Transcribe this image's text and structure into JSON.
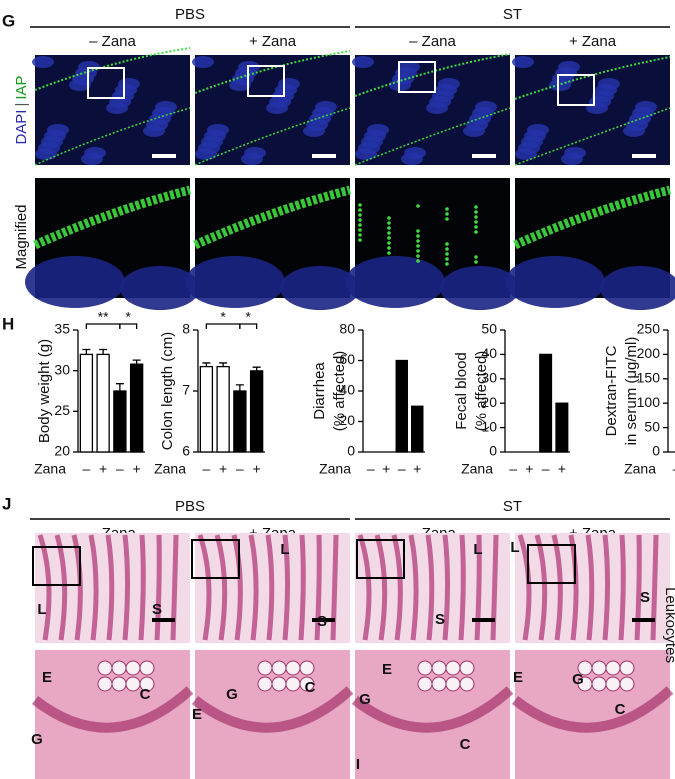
{
  "panel_g": {
    "label": "G",
    "groups": [
      "PBS",
      "ST"
    ],
    "conditions": [
      "– Zana",
      "+ Zana",
      "– Zana",
      "+ Zana"
    ],
    "row_labels": {
      "dapi": "DAPI",
      "iap": "IAP",
      "magnified": "Magnified"
    }
  },
  "panel_h": {
    "label": "H"
  },
  "chart_data": [
    {
      "type": "bar",
      "y_label": "Body weight (g)",
      "x_label": "Zana",
      "categories": [
        "–",
        "+",
        "–",
        "+"
      ],
      "values": [
        32,
        32,
        27.5,
        30.8
      ],
      "errors": [
        0.6,
        0.6,
        0.9,
        0.5
      ],
      "colors": [
        "#ffffff",
        "#ffffff",
        "#000000",
        "#000000"
      ],
      "ylim": [
        20,
        35
      ],
      "yticks": [
        20,
        25,
        30,
        35
      ],
      "brackets": [
        {
          "label": "**",
          "from": 0,
          "to": 2
        },
        {
          "label": "*",
          "from": 2,
          "to": 3
        }
      ]
    },
    {
      "type": "bar",
      "y_label": "Colon length (cm)",
      "x_label": "Zana",
      "categories": [
        "–",
        "+",
        "–",
        "+"
      ],
      "values": [
        7.4,
        7.4,
        7.0,
        7.33
      ],
      "errors": [
        0.06,
        0.06,
        0.1,
        0.06
      ],
      "colors": [
        "#ffffff",
        "#ffffff",
        "#000000",
        "#000000"
      ],
      "ylim": [
        6,
        8
      ],
      "yticks": [
        6,
        7,
        8
      ],
      "brackets": [
        {
          "label": "*",
          "from": 0,
          "to": 2
        },
        {
          "label": "*",
          "from": 2,
          "to": 3
        }
      ]
    },
    {
      "type": "bar",
      "y_label": [
        "Diarrhea",
        "(% affected)"
      ],
      "x_label": "Zana",
      "categories": [
        "–",
        "+",
        "–",
        "+"
      ],
      "values": [
        0,
        0,
        60,
        30
      ],
      "colors": [
        "#000000",
        "#000000",
        "#000000",
        "#000000"
      ],
      "ylim": [
        0,
        80
      ],
      "yticks": [
        0,
        20,
        40,
        60,
        80
      ]
    },
    {
      "type": "bar",
      "y_label": [
        "Fecal blood",
        "(% affected)"
      ],
      "x_label": "Zana",
      "categories": [
        "–",
        "+",
        "–",
        "+"
      ],
      "values": [
        0,
        0,
        40,
        20
      ],
      "colors": [
        "#000000",
        "#000000",
        "#000000",
        "#000000"
      ],
      "ylim": [
        0,
        50
      ],
      "yticks": [
        0,
        10,
        20,
        30,
        40,
        50
      ]
    },
    {
      "type": "bar",
      "y_label": [
        "Dextran-FITC",
        "in serum (μg/ml)"
      ],
      "x_label": "Zana",
      "categories": [
        "–"
      ],
      "ylim": [
        0,
        250
      ],
      "yticks": [
        0,
        50,
        100,
        150,
        200,
        250
      ]
    }
  ],
  "panel_j": {
    "label": "J",
    "groups": [
      "PBS",
      "ST"
    ],
    "conditions": [
      "– Zana",
      "+ Zana",
      "– Zana",
      "+ Zana"
    ],
    "side_label": "Leukocytes",
    "letters": [
      "L",
      "S",
      "L",
      "S",
      "L",
      "S",
      "L",
      "S",
      "E",
      "G",
      "C",
      "E",
      "G",
      "C",
      "E",
      "G",
      "C",
      "I",
      "E",
      "G",
      "C"
    ]
  }
}
